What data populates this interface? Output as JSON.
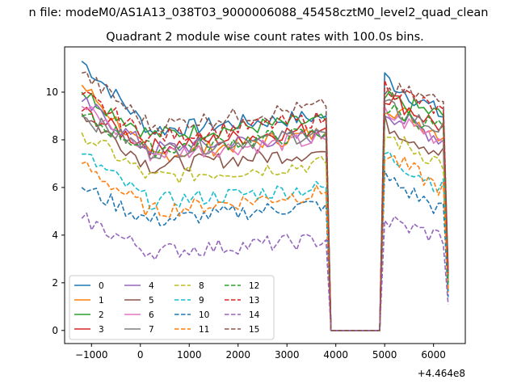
{
  "chart_data": {
    "type": "line",
    "suptitle": "n file: modeM0/AS1A13_038T03_9000006088_45458cztM0_level2_quad_clean",
    "title": "Quadrant 2 module wise count rates with 100.0s bins.",
    "xlabel": "",
    "ylabel": "",
    "x_offset_label": "+4.464e8",
    "xlim": [
      -1550,
      6650
    ],
    "ylim": [
      -0.55,
      11.9
    ],
    "xticks": [
      -1000,
      0,
      1000,
      2000,
      3000,
      4000,
      5000,
      6000
    ],
    "xtick_labels": [
      "−1000",
      "0",
      "1000",
      "2000",
      "3000",
      "4000",
      "5000",
      "6000"
    ],
    "yticks": [
      0,
      2,
      4,
      6,
      8,
      10
    ],
    "ytick_labels": [
      "0",
      "2",
      "4",
      "6",
      "8",
      "10"
    ],
    "grid": false,
    "legend_position": "lower-left",
    "x_start": -1200,
    "x_step": 100,
    "gap_start": 3900,
    "gap_end": 4900,
    "x_end": 6300,
    "series": [
      {
        "name": "0",
        "color": "#1f77b4",
        "dash": "solid",
        "start": 11.3,
        "mid": 8.4,
        "pre_gap": 9.0,
        "post_start": 10.6,
        "post_end": 9.0,
        "end": 2.3
      },
      {
        "name": "1",
        "color": "#ff7f0e",
        "dash": "solid",
        "start": 10.3,
        "mid": 7.3,
        "pre_gap": 8.3,
        "post_start": 9.5,
        "post_end": 8.2,
        "end": 2.1
      },
      {
        "name": "2",
        "color": "#2ca02c",
        "dash": "solid",
        "start": 10.0,
        "mid": 8.2,
        "pre_gap": 8.8,
        "post_start": 9.7,
        "post_end": 9.0,
        "end": 2.3
      },
      {
        "name": "3",
        "color": "#d62728",
        "dash": "solid",
        "start": 9.2,
        "mid": 7.7,
        "pre_gap": 8.5,
        "post_start": 9.9,
        "post_end": 8.5,
        "end": 2.0
      },
      {
        "name": "4",
        "color": "#9467bd",
        "dash": "solid",
        "start": 9.6,
        "mid": 7.6,
        "pre_gap": 8.2,
        "post_start": 9.2,
        "post_end": 8.0,
        "end": 1.9
      },
      {
        "name": "5",
        "color": "#8c564b",
        "dash": "solid",
        "start": 9.1,
        "mid": 6.9,
        "pre_gap": 7.5,
        "post_start": 8.7,
        "post_end": 7.4,
        "end": 1.7
      },
      {
        "name": "6",
        "color": "#e377c2",
        "dash": "solid",
        "start": 9.4,
        "mid": 7.4,
        "pre_gap": 8.0,
        "post_start": 9.1,
        "post_end": 8.0,
        "end": 1.9
      },
      {
        "name": "7",
        "color": "#7f7f7f",
        "dash": "solid",
        "start": 9.0,
        "mid": 7.5,
        "pre_gap": 8.3,
        "post_start": 9.4,
        "post_end": 8.4,
        "end": 2.0
      },
      {
        "name": "8",
        "color": "#bcbd22",
        "dash": "dashed",
        "start": 8.3,
        "mid": 6.4,
        "pre_gap": 7.0,
        "post_start": 8.2,
        "post_end": 7.0,
        "end": 1.8
      },
      {
        "name": "9",
        "color": "#17becf",
        "dash": "dashed",
        "start": 7.4,
        "mid": 5.4,
        "pre_gap": 6.0,
        "post_start": 7.4,
        "post_end": 6.0,
        "end": 1.6
      },
      {
        "name": "10",
        "color": "#1f77b4",
        "dash": "dashed",
        "start": 6.0,
        "mid": 4.6,
        "pre_gap": 5.3,
        "post_start": 6.4,
        "post_end": 5.0,
        "end": 1.4
      },
      {
        "name": "11",
        "color": "#ff7f0e",
        "dash": "dashed",
        "start": 7.0,
        "mid": 5.0,
        "pre_gap": 5.8,
        "post_start": 7.4,
        "post_end": 5.9,
        "end": 1.6
      },
      {
        "name": "12",
        "color": "#2ca02c",
        "dash": "dashed",
        "start": 9.0,
        "mid": 7.6,
        "pre_gap": 8.3,
        "post_start": 9.3,
        "post_end": 8.5,
        "end": 2.0
      },
      {
        "name": "13",
        "color": "#d62728",
        "dash": "dashed",
        "start": 9.9,
        "mid": 8.1,
        "pre_gap": 8.9,
        "post_start": 10.3,
        "post_end": 9.1,
        "end": 2.4
      },
      {
        "name": "14",
        "color": "#9467bd",
        "dash": "dashed",
        "start": 4.7,
        "mid": 3.3,
        "pre_gap": 3.8,
        "post_start": 4.6,
        "post_end": 3.9,
        "end": 1.1
      },
      {
        "name": "15",
        "color": "#8c564b",
        "dash": "dashed",
        "start": 10.8,
        "mid": 8.6,
        "pre_gap": 9.4,
        "post_start": 10.1,
        "post_end": 9.6,
        "end": 2.5
      }
    ]
  }
}
